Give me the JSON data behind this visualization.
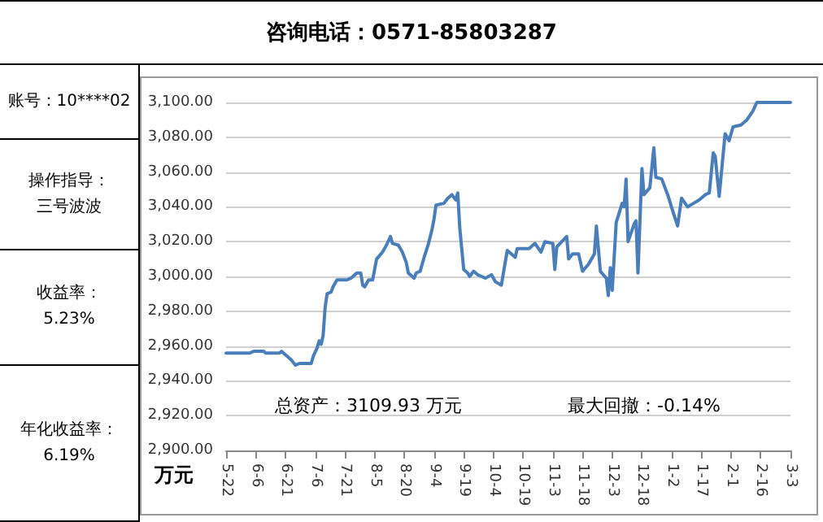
{
  "chart_data": {
    "type": "line",
    "title": "咨询电话：0571-85803287",
    "ylabel": "万元",
    "annotations": [
      "账号：10****02",
      "操作指导：",
      "三号波波",
      "收益率：",
      "5.23%",
      "年化收益率：",
      "6.19%",
      "总资产：3109.93 万元",
      "最大回撤：-0.14%"
    ],
    "categories": [
      "5-22",
      null,
      null,
      null,
      null,
      null,
      null,
      null,
      null,
      null,
      null,
      null,
      null,
      null,
      null,
      "6-6",
      null,
      null,
      null,
      null,
      null,
      null,
      null,
      null,
      null,
      null,
      null,
      null,
      null,
      null,
      "6-21",
      null,
      null,
      null,
      null,
      null,
      null,
      null,
      null,
      null,
      null,
      null,
      null,
      null,
      null,
      "7-6",
      null,
      null,
      null,
      null,
      null,
      null,
      null,
      null,
      null,
      null,
      null,
      null,
      null,
      null,
      "7-21",
      null,
      null,
      null,
      null,
      null,
      null,
      null,
      null,
      null,
      null,
      null,
      null,
      null,
      null,
      "8-5",
      null,
      null,
      null,
      null,
      null,
      null,
      null,
      null,
      null,
      null,
      null,
      null,
      null,
      null,
      "8-20",
      null,
      null,
      null,
      null,
      null,
      null,
      null,
      null,
      null,
      null,
      null,
      null,
      null,
      null,
      "9-4",
      null,
      null,
      null,
      null,
      null,
      null,
      null,
      null,
      null,
      null,
      null,
      null,
      null,
      null,
      "9-19",
      null,
      null,
      null,
      null,
      null,
      null,
      null,
      null,
      null,
      null,
      null,
      null,
      null,
      null,
      "10-4",
      null,
      null,
      null,
      null,
      null,
      null,
      null,
      null,
      null,
      null,
      null,
      null,
      null,
      null,
      "10-19",
      null,
      null,
      null,
      null,
      null,
      null,
      null,
      null,
      null,
      null,
      null,
      null,
      null,
      null,
      "11-3",
      null,
      null,
      null,
      null,
      null,
      null,
      null,
      null,
      null,
      null,
      null,
      null,
      null,
      null,
      "11-18",
      null,
      null,
      null,
      null,
      null,
      null,
      null,
      null,
      null,
      null,
      null,
      null,
      null,
      null,
      "12-3",
      null,
      null,
      null,
      null,
      null,
      null,
      null,
      null,
      null,
      null,
      null,
      null,
      null,
      null,
      "12-18",
      null,
      null,
      null,
      null,
      null,
      null,
      null,
      null,
      null,
      null,
      null,
      null,
      null,
      null,
      "1-2",
      null,
      null,
      null,
      null,
      null,
      null,
      null,
      null,
      null,
      null,
      null,
      null,
      null,
      null,
      "1-17",
      null,
      null,
      null,
      null,
      null,
      null,
      null,
      null,
      null,
      null,
      null,
      null,
      null,
      null,
      "2-1",
      null,
      null,
      null,
      null,
      null,
      null,
      null,
      null,
      null,
      null,
      null,
      null,
      null,
      null,
      "2-16",
      null,
      null,
      null,
      null,
      null,
      null,
      null,
      null,
      null,
      null,
      null,
      null,
      null,
      null,
      "3-3"
    ],
    "series": [
      {
        "color": "#4a7ebb",
        "values": [
          2956,
          null,
          null,
          null,
          null,
          null,
          null,
          null,
          null,
          null,
          null,
          null,
          2956,
          null,
          2957,
          null,
          null,
          null,
          null,
          2957,
          2956,
          null,
          null,
          null,
          null,
          null,
          null,
          2956,
          2957,
          2956,
          null,
          null,
          null,
          2952,
          null,
          2949,
          null,
          2950,
          null,
          null,
          null,
          2950,
          null,
          2950,
          2954,
          null,
          2959,
          2963,
          2961,
          2966,
          2982,
          2990,
          null,
          2991,
          2994,
          null,
          2998,
          null,
          2998,
          null,
          null,
          2998,
          null,
          2999,
          null,
          null,
          3002,
          null,
          3002,
          2995,
          2994,
          null,
          2998,
          null,
          2998,
          null,
          3010,
          null,
          null,
          3014,
          null,
          3018,
          null,
          3023,
          3019,
          null,
          null,
          3018,
          null,
          3014,
          null,
          3008,
          3002,
          null,
          null,
          2999,
          3002,
          null,
          3003,
          null,
          3011,
          null,
          3018,
          null,
          3027,
          3033,
          3041,
          null,
          null,
          null,
          3042,
          null,
          3045,
          null,
          3047,
          null,
          3044,
          3048,
          3028,
          null,
          3004,
          null,
          3002,
          3000,
          null,
          3003,
          null,
          3001,
          null,
          3000,
          null,
          2999,
          null,
          null,
          3001,
          null,
          2997,
          null,
          null,
          2995,
          null,
          null,
          3015,
          null,
          null,
          null,
          3011,
          3016,
          null,
          null,
          null,
          null,
          null,
          3016,
          null,
          null,
          3019,
          null,
          null,
          3014,
          null,
          3020,
          null,
          null,
          null,
          3019,
          3004,
          3017,
          null,
          null,
          null,
          null,
          3023,
          3010,
          null,
          3013,
          null,
          null,
          3013,
          null,
          3003,
          null,
          null,
          3007,
          null,
          null,
          3013,
          3029,
          null,
          3003,
          null,
          null,
          2999,
          2989,
          3005,
          2992,
          null,
          3031,
          null,
          null,
          3042,
          3040,
          3056,
          3020,
          null,
          null,
          3030,
          3032,
          3002,
          null,
          3062,
          3047,
          null,
          null,
          3051,
          null,
          3074,
          3057,
          null,
          null,
          3056,
          null,
          null,
          3047,
          null,
          null,
          3036,
          null,
          3029,
          null,
          3045,
          null,
          null,
          3040,
          null,
          null,
          3042,
          null,
          null,
          3044,
          null,
          null,
          3047,
          null,
          3048,
          null,
          3071,
          3069,
          null,
          3046,
          null,
          null,
          3082,
          null,
          3078,
          null,
          3086,
          null,
          null,
          null,
          3087,
          null,
          null,
          3090,
          null,
          null,
          3095,
          null,
          3100,
          null,
          null,
          null,
          null,
          null,
          null,
          null,
          null,
          null,
          null,
          null,
          null,
          null,
          null,
          null,
          null,
          3100
        ]
      }
    ],
    "ylim": [
      2900,
      3100
    ],
    "yticks": [
      {
        "value": 2900,
        "label": "2,900.00"
      },
      {
        "value": 2920,
        "label": "2,920.00"
      },
      {
        "value": 2940,
        "label": "2,940.00"
      },
      {
        "value": 2960,
        "label": "2,960.00"
      },
      {
        "value": 2980,
        "label": "2,980.00"
      },
      {
        "value": 3000,
        "label": "3,000.00"
      },
      {
        "value": 3020,
        "label": "3,020.00"
      },
      {
        "value": 3040,
        "label": "3,040.00"
      },
      {
        "value": 3060,
        "label": "3,060.00"
      },
      {
        "value": 3080,
        "label": "3,080.00"
      },
      {
        "value": 3100,
        "label": "3,100.00"
      }
    ],
    "grid": "y",
    "marker": "none",
    "line_style": "solid"
  }
}
